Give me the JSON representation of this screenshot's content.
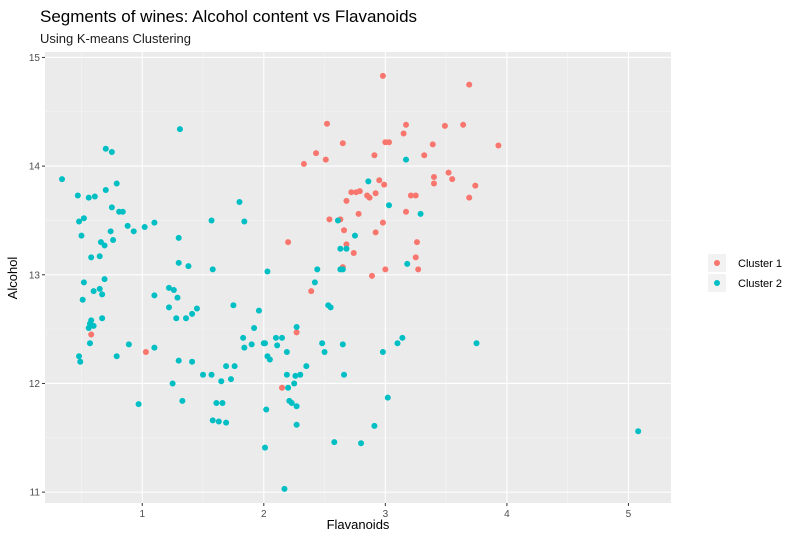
{
  "chart_data": {
    "type": "scatter",
    "title": "Segments of wines: Alcohol content vs Flavanoids",
    "subtitle": "Using K-means Clustering",
    "xlabel": "Flavanoids",
    "ylabel": "Alcohol",
    "xlim": [
      0.2,
      5.35
    ],
    "ylim": [
      10.9,
      15.05
    ],
    "x_ticks": [
      1,
      2,
      3,
      4,
      5
    ],
    "y_ticks": [
      11,
      12,
      13,
      14,
      15
    ],
    "grid": true,
    "legend_position": "right",
    "series": [
      {
        "name": "Cluster 1",
        "color": "#F8766D",
        "points": [
          [
            2.98,
            14.83
          ],
          [
            3.69,
            14.75
          ],
          [
            3.49,
            14.37
          ],
          [
            3.64,
            14.38
          ],
          [
            3.17,
            14.38
          ],
          [
            2.52,
            14.39
          ],
          [
            3.15,
            14.3
          ],
          [
            2.91,
            14.1
          ],
          [
            3.93,
            14.19
          ],
          [
            3.39,
            14.2
          ],
          [
            3.0,
            14.22
          ],
          [
            3.03,
            14.22
          ],
          [
            2.65,
            14.21
          ],
          [
            2.43,
            14.12
          ],
          [
            2.51,
            14.06
          ],
          [
            2.33,
            14.02
          ],
          [
            3.32,
            14.1
          ],
          [
            3.52,
            13.94
          ],
          [
            3.55,
            13.88
          ],
          [
            3.4,
            13.9
          ],
          [
            3.4,
            13.84
          ],
          [
            2.95,
            13.87
          ],
          [
            2.99,
            13.83
          ],
          [
            3.74,
            13.82
          ],
          [
            3.69,
            13.71
          ],
          [
            3.21,
            13.73
          ],
          [
            2.72,
            13.76
          ],
          [
            2.76,
            13.76
          ],
          [
            2.79,
            13.77
          ],
          [
            2.68,
            13.68
          ],
          [
            2.87,
            13.71
          ],
          [
            2.92,
            13.75
          ],
          [
            3.17,
            13.58
          ],
          [
            2.54,
            13.51
          ],
          [
            2.98,
            13.48
          ],
          [
            2.78,
            13.56
          ],
          [
            2.63,
            13.51
          ],
          [
            2.66,
            13.41
          ],
          [
            2.92,
            13.39
          ],
          [
            3.26,
            13.3
          ],
          [
            2.68,
            13.28
          ],
          [
            2.74,
            13.2
          ],
          [
            3.25,
            13.16
          ],
          [
            2.2,
            13.3
          ],
          [
            2.65,
            13.07
          ],
          [
            3.0,
            13.05
          ],
          [
            3.27,
            13.05
          ],
          [
            2.89,
            12.99
          ],
          [
            2.39,
            12.85
          ],
          [
            2.27,
            12.47
          ],
          [
            0.58,
            12.45
          ],
          [
            1.03,
            12.29
          ],
          [
            2.15,
            11.96
          ],
          [
            3.25,
            13.73
          ],
          [
            2.85,
            13.73
          ]
        ]
      },
      {
        "name": "Cluster 2",
        "color": "#00BFC4",
        "points": [
          [
            0.34,
            13.88
          ],
          [
            0.47,
            13.73
          ],
          [
            0.56,
            13.71
          ],
          [
            0.61,
            13.72
          ],
          [
            0.7,
            13.78
          ],
          [
            0.79,
            13.84
          ],
          [
            0.81,
            13.58
          ],
          [
            0.75,
            13.62
          ],
          [
            0.52,
            13.52
          ],
          [
            0.48,
            13.49
          ],
          [
            0.5,
            13.36
          ],
          [
            0.58,
            13.16
          ],
          [
            0.65,
            13.17
          ],
          [
            0.69,
            13.27
          ],
          [
            0.74,
            13.4
          ],
          [
            0.76,
            13.32
          ],
          [
            0.88,
            13.45
          ],
          [
            0.93,
            13.4
          ],
          [
            0.52,
            12.93
          ],
          [
            0.69,
            12.96
          ],
          [
            0.6,
            12.85
          ],
          [
            0.65,
            12.87
          ],
          [
            0.67,
            12.82
          ],
          [
            0.51,
            12.77
          ],
          [
            0.58,
            12.58
          ],
          [
            0.6,
            12.53
          ],
          [
            0.67,
            12.6
          ],
          [
            0.56,
            12.51
          ],
          [
            0.57,
            12.37
          ],
          [
            0.48,
            12.25
          ],
          [
            0.49,
            12.2
          ],
          [
            0.89,
            12.36
          ],
          [
            0.7,
            14.16
          ],
          [
            0.75,
            14.13
          ],
          [
            1.31,
            14.34
          ],
          [
            0.79,
            12.25
          ],
          [
            0.97,
            11.81
          ],
          [
            1.1,
            12.33
          ],
          [
            1.1,
            13.48
          ],
          [
            1.26,
            12.86
          ],
          [
            1.22,
            12.88
          ],
          [
            1.29,
            12.79
          ],
          [
            1.22,
            12.7
          ],
          [
            1.28,
            12.6
          ],
          [
            1.36,
            12.6
          ],
          [
            1.41,
            12.64
          ],
          [
            1.45,
            12.69
          ],
          [
            1.3,
            13.34
          ],
          [
            1.3,
            13.11
          ],
          [
            1.38,
            13.08
          ],
          [
            1.57,
            13.5
          ],
          [
            1.58,
            13.05
          ],
          [
            1.8,
            13.67
          ],
          [
            1.84,
            13.49
          ],
          [
            1.1,
            12.81
          ],
          [
            1.3,
            12.21
          ],
          [
            1.25,
            12.0
          ],
          [
            1.33,
            11.84
          ],
          [
            1.5,
            12.08
          ],
          [
            1.57,
            12.08
          ],
          [
            1.65,
            12.02
          ],
          [
            1.61,
            11.82
          ],
          [
            1.66,
            11.82
          ],
          [
            1.58,
            11.66
          ],
          [
            1.63,
            11.65
          ],
          [
            1.69,
            11.64
          ],
          [
            1.69,
            12.16
          ],
          [
            1.76,
            12.16
          ],
          [
            1.73,
            12.04
          ],
          [
            1.75,
            12.72
          ],
          [
            1.83,
            12.42
          ],
          [
            1.84,
            12.33
          ],
          [
            1.92,
            12.51
          ],
          [
            1.96,
            12.67
          ],
          [
            2.03,
            13.03
          ],
          [
            2.01,
            12.37
          ],
          [
            2.03,
            12.25
          ],
          [
            2.05,
            12.22
          ],
          [
            2.1,
            12.42
          ],
          [
            2.11,
            12.35
          ],
          [
            2.15,
            12.42
          ],
          [
            2.19,
            12.29
          ],
          [
            2.19,
            12.08
          ],
          [
            2.21,
            11.84
          ],
          [
            2.23,
            11.82
          ],
          [
            2.27,
            12.52
          ],
          [
            2.26,
            12.07
          ],
          [
            2.3,
            12.08
          ],
          [
            2.25,
            12.0
          ],
          [
            2.27,
            11.79
          ],
          [
            2.02,
            11.76
          ],
          [
            2.27,
            11.62
          ],
          [
            2.01,
            11.41
          ],
          [
            2.17,
            11.03
          ],
          [
            2.42,
            12.93
          ],
          [
            2.44,
            13.05
          ],
          [
            2.48,
            12.37
          ],
          [
            2.53,
            12.72
          ],
          [
            2.55,
            12.7
          ],
          [
            2.5,
            12.29
          ],
          [
            2.58,
            11.46
          ],
          [
            2.61,
            13.5
          ],
          [
            2.63,
            13.24
          ],
          [
            2.63,
            13.05
          ],
          [
            2.65,
            13.05
          ],
          [
            2.68,
            13.24
          ],
          [
            2.65,
            12.36
          ],
          [
            2.66,
            12.08
          ],
          [
            2.75,
            13.36
          ],
          [
            2.86,
            13.86
          ],
          [
            2.91,
            11.61
          ],
          [
            2.98,
            12.29
          ],
          [
            3.02,
            11.87
          ],
          [
            3.03,
            13.64
          ],
          [
            3.1,
            12.37
          ],
          [
            3.14,
            12.42
          ],
          [
            3.18,
            13.1
          ],
          [
            3.17,
            14.06
          ],
          [
            3.29,
            13.56
          ],
          [
            2.8,
            11.45
          ],
          [
            5.08,
            11.56
          ],
          [
            3.75,
            12.37
          ],
          [
            2.0,
            12.37
          ],
          [
            2.35,
            12.16
          ],
          [
            1.9,
            12.36
          ],
          [
            2.2,
            11.96
          ],
          [
            0.84,
            13.58
          ],
          [
            1.02,
            13.44
          ],
          [
            0.66,
            13.3
          ],
          [
            0.57,
            12.55
          ],
          [
            1.41,
            12.2
          ]
        ]
      }
    ]
  }
}
